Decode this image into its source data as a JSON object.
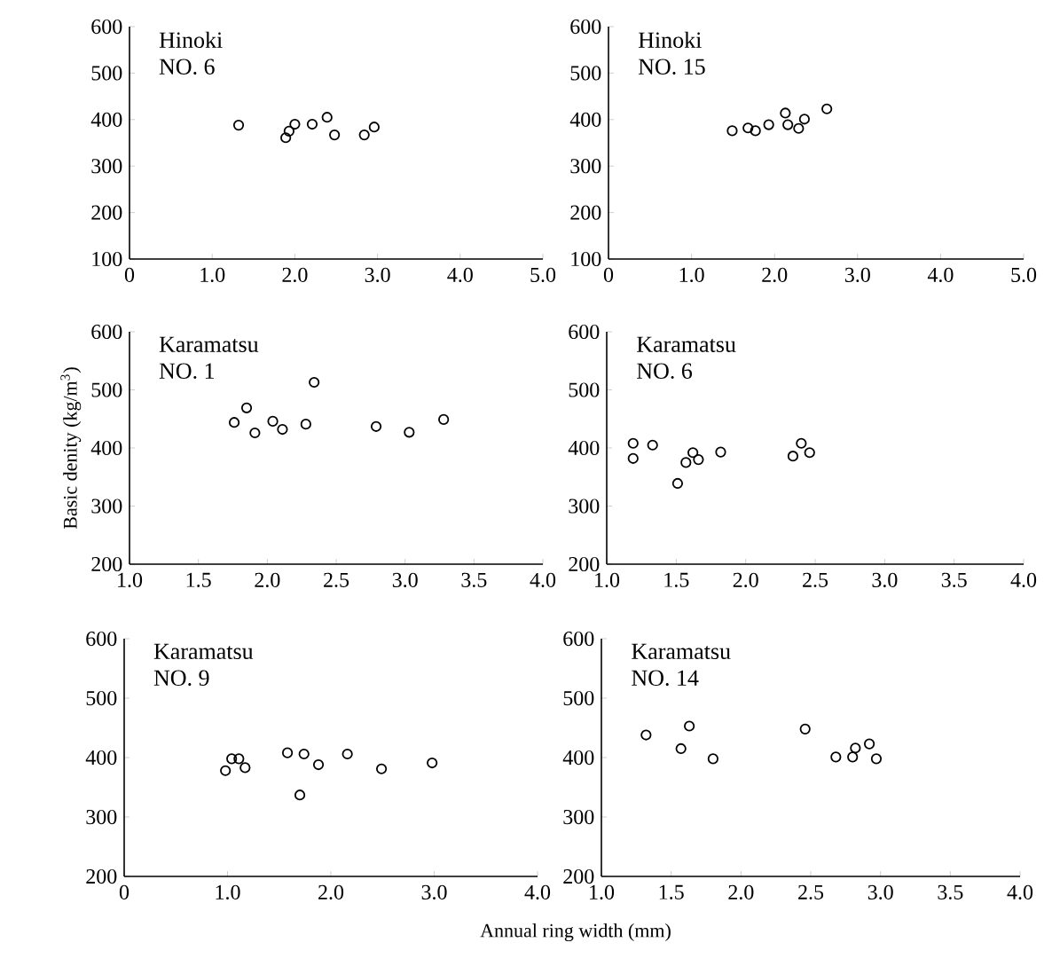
{
  "chart_data": [
    {
      "type": "scatter",
      "title": "Hinoki",
      "subtitle": "NO. 6",
      "marker": "circle",
      "color": "#000000",
      "xlim": [
        0,
        5
      ],
      "ylim": [
        100,
        600
      ],
      "xticks": [
        0,
        {
          "value": 1,
          "label": "1.0"
        },
        {
          "value": 2,
          "label": "2.0"
        },
        {
          "value": 3,
          "label": "3.0"
        },
        {
          "value": 4,
          "label": "4.0"
        },
        {
          "value": 5,
          "label": "5.0"
        }
      ],
      "yticks": [
        100,
        200,
        300,
        400,
        500,
        600
      ],
      "x": [
        1.32,
        1.89,
        1.93,
        2.0,
        2.21,
        2.39,
        2.48,
        2.84,
        2.96
      ],
      "values": [
        388,
        361,
        375,
        390,
        390,
        405,
        367,
        367,
        384
      ]
    },
    {
      "type": "scatter",
      "title": "Hinoki",
      "subtitle": "NO. 15",
      "marker": "circle",
      "color": "#000000",
      "xlim": [
        0,
        5
      ],
      "ylim": [
        100,
        600
      ],
      "xticks": [
        0,
        {
          "value": 1,
          "label": "1.0"
        },
        {
          "value": 2,
          "label": "2.0"
        },
        {
          "value": 3,
          "label": "3.0"
        },
        {
          "value": 4,
          "label": "4.0"
        },
        {
          "value": 5,
          "label": "5.0"
        }
      ],
      "yticks": [
        100,
        200,
        300,
        400,
        500,
        600
      ],
      "x": [
        1.49,
        1.68,
        1.77,
        1.93,
        2.13,
        2.16,
        2.29,
        2.36,
        2.63
      ],
      "values": [
        376,
        382,
        376,
        389,
        414,
        389,
        381,
        401,
        423
      ]
    },
    {
      "type": "scatter",
      "title": "Karamatsu",
      "subtitle": "NO. 1",
      "ylabel": "Basic denity (kg/m$^{3}$)",
      "marker": "circle",
      "color": "#000000",
      "xlim": [
        1,
        4
      ],
      "ylim": [
        200,
        600
      ],
      "xticks": [
        {
          "value": 1,
          "label": "1.0"
        },
        {
          "value": 1.5,
          "label": "1.5"
        },
        {
          "value": 2,
          "label": "2.0"
        },
        {
          "value": 2.5,
          "label": "2.5"
        },
        {
          "value": 3,
          "label": "3.0"
        },
        {
          "value": 3.5,
          "label": "3.5"
        },
        {
          "value": 4,
          "label": "4.0"
        }
      ],
      "yticks": [
        200,
        300,
        400,
        500,
        600
      ],
      "x": [
        1.76,
        1.85,
        1.91,
        2.04,
        2.11,
        2.28,
        2.34,
        2.79,
        3.03,
        3.28
      ],
      "values": [
        444,
        469,
        426,
        446,
        432,
        441,
        513,
        437,
        427,
        449
      ]
    },
    {
      "type": "scatter",
      "title": "Karamatsu",
      "subtitle": "NO. 6",
      "marker": "circle",
      "color": "#000000",
      "xlim": [
        1,
        4
      ],
      "ylim": [
        200,
        600
      ],
      "xticks": [
        {
          "value": 1,
          "label": "1.0"
        },
        {
          "value": 1.5,
          "label": "1.5"
        },
        {
          "value": 2,
          "label": "2.0"
        },
        {
          "value": 2.5,
          "label": "2.5"
        },
        {
          "value": 3,
          "label": "3.0"
        },
        {
          "value": 3.5,
          "label": "3.5"
        },
        {
          "value": 4,
          "label": "4.0"
        }
      ],
      "yticks": [
        200,
        300,
        400,
        500,
        600
      ],
      "x": [
        1.19,
        1.19,
        1.33,
        1.51,
        1.57,
        1.62,
        1.66,
        1.82,
        2.34,
        2.4,
        2.46
      ],
      "values": [
        408,
        382,
        405,
        339,
        375,
        392,
        380,
        393,
        386,
        408,
        392
      ]
    },
    {
      "type": "scatter",
      "title": "Karamatsu",
      "subtitle": "NO. 9",
      "xlabel": "Annual ring width (mm)",
      "marker": "circle",
      "color": "#000000",
      "xlim": [
        0,
        4
      ],
      "ylim": [
        200,
        600
      ],
      "xticks": [
        0,
        {
          "value": 1,
          "label": "1.0"
        },
        {
          "value": 2,
          "label": "2.0"
        },
        {
          "value": 3,
          "label": "3.0"
        },
        {
          "value": 4,
          "label": "4.0"
        }
      ],
      "yticks": [
        200,
        300,
        400,
        500,
        600
      ],
      "x": [
        0.98,
        1.04,
        1.11,
        1.17,
        1.58,
        1.7,
        1.74,
        1.88,
        2.16,
        2.49,
        2.98
      ],
      "values": [
        378,
        398,
        398,
        383,
        408,
        337,
        406,
        388,
        406,
        381,
        391
      ]
    },
    {
      "type": "scatter",
      "title": "Karamatsu",
      "subtitle": "NO. 14",
      "marker": "circle",
      "color": "#000000",
      "xlim": [
        1,
        4
      ],
      "ylim": [
        200,
        600
      ],
      "xticks": [
        {
          "value": 1,
          "label": "1.0"
        },
        {
          "value": 1.5,
          "label": "1.5"
        },
        {
          "value": 2,
          "label": "2.0"
        },
        {
          "value": 2.5,
          "label": "2.5"
        },
        {
          "value": 3,
          "label": "3.0"
        },
        {
          "value": 3.5,
          "label": "3.5"
        },
        {
          "value": 4,
          "label": "4.0"
        }
      ],
      "yticks": [
        200,
        300,
        400,
        500,
        600
      ],
      "x": [
        1.32,
        1.57,
        1.63,
        1.8,
        2.46,
        2.68,
        2.8,
        2.82,
        2.92,
        2.97
      ],
      "values": [
        438,
        415,
        453,
        398,
        448,
        401,
        401,
        416,
        423,
        398
      ]
    }
  ]
}
